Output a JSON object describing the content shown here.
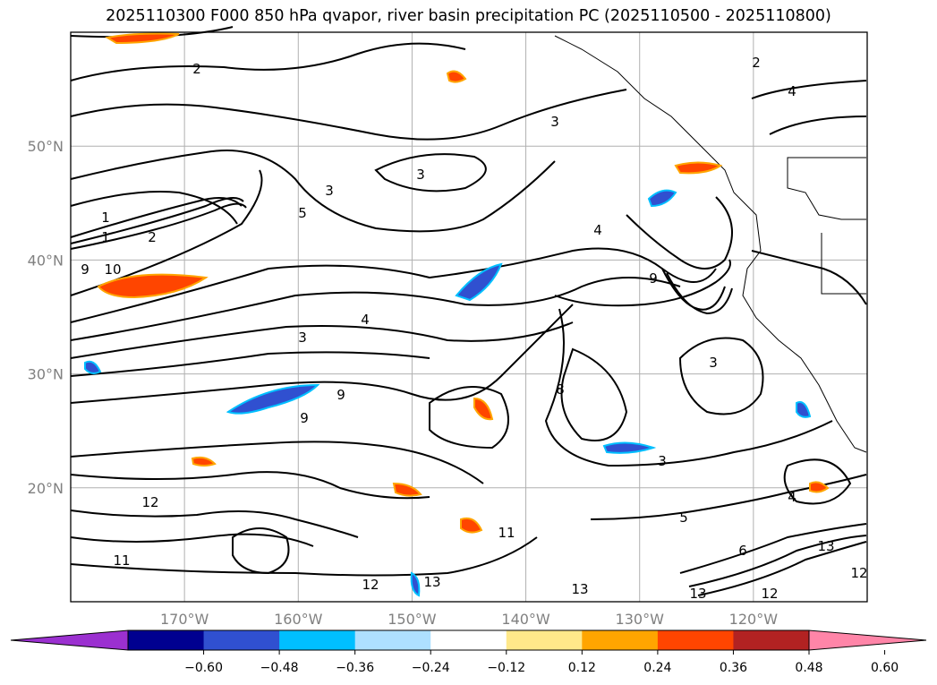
{
  "title": "2025110300 F000 850 hPa qvapor, river basin precipitation PC (2025110500 - 2025110800)",
  "map": {
    "lon_range": [
      -180,
      -110
    ],
    "lat_range": [
      10,
      60
    ],
    "lat_labels": [
      "50°N",
      "40°N",
      "30°N",
      "20°N"
    ],
    "lat_values": [
      50,
      40,
      30,
      20
    ],
    "lon_labels": [
      "170°W",
      "160°W",
      "150°W",
      "140°W",
      "130°W",
      "120°W"
    ],
    "lon_values": [
      -170,
      -160,
      -150,
      -140,
      -130,
      -120
    ],
    "gridlines": true,
    "contour_labels": [
      "2",
      "4",
      "1",
      "1",
      "2",
      "9",
      "10",
      "3",
      "5",
      "3",
      "2",
      "3",
      "4",
      "9",
      "3",
      "4",
      "9",
      "9",
      "8",
      "12",
      "11",
      "12",
      "13",
      "12",
      "13",
      "11",
      "5",
      "3",
      "4",
      "13",
      "13",
      "12",
      "3",
      "6"
    ]
  },
  "colorbar": {
    "colors": [
      "#9b30d0",
      "#000090",
      "#3050d0",
      "#00bfff",
      "#aee0ff",
      "#ffffff",
      "#ffe88a",
      "#ffa500",
      "#ff4500",
      "#b22222",
      "#ff85a8"
    ],
    "ticks": [
      "−0.60",
      "−0.48",
      "−0.36",
      "−0.24",
      "−0.12",
      "0.12",
      "0.24",
      "0.36",
      "0.48",
      "0.60"
    ],
    "tick_values": [
      -0.6,
      -0.48,
      -0.36,
      -0.24,
      -0.12,
      0.12,
      0.24,
      0.36,
      0.48,
      0.6
    ],
    "extend": "both"
  }
}
